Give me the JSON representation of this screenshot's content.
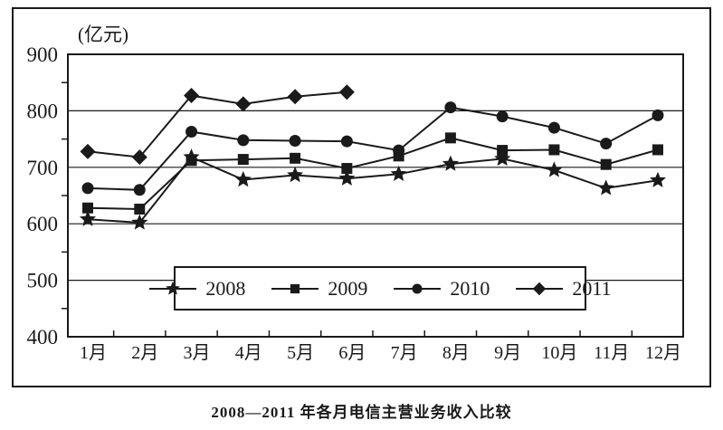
{
  "chart": {
    "unit_label": "(亿元)",
    "title": "2008—2011 年各月电信主营业务收入比较"
  },
  "chart_data": {
    "type": "line",
    "title": "2008—2011 年各月电信主营业务收入比较",
    "ylabel": "(亿元)",
    "xlabel": "",
    "categories": [
      "1月",
      "2月",
      "3月",
      "4月",
      "5月",
      "6月",
      "7月",
      "8月",
      "9月",
      "10月",
      "11月",
      "12月"
    ],
    "series": [
      {
        "name": "2008",
        "marker": "star",
        "values": [
          608,
          602,
          718,
          678,
          686,
          680,
          688,
          706,
          715,
          695,
          663,
          677
        ]
      },
      {
        "name": "2009",
        "marker": "square",
        "values": [
          628,
          626,
          712,
          714,
          716,
          698,
          720,
          752,
          730,
          731,
          705,
          731
        ]
      },
      {
        "name": "2010",
        "marker": "circle",
        "values": [
          663,
          660,
          763,
          748,
          747,
          746,
          730,
          806,
          790,
          770,
          742,
          792
        ]
      },
      {
        "name": "2011",
        "marker": "diamond",
        "values": [
          728,
          718,
          827,
          812,
          825,
          833
        ]
      }
    ],
    "ylim": [
      400,
      900
    ],
    "yticks": [
      400,
      500,
      600,
      700,
      800,
      900
    ],
    "ytick_step": 100,
    "grid": true,
    "legend_position": "bottom-center-inside",
    "line_color": "#1a1a1a",
    "background": "#ffffff"
  }
}
